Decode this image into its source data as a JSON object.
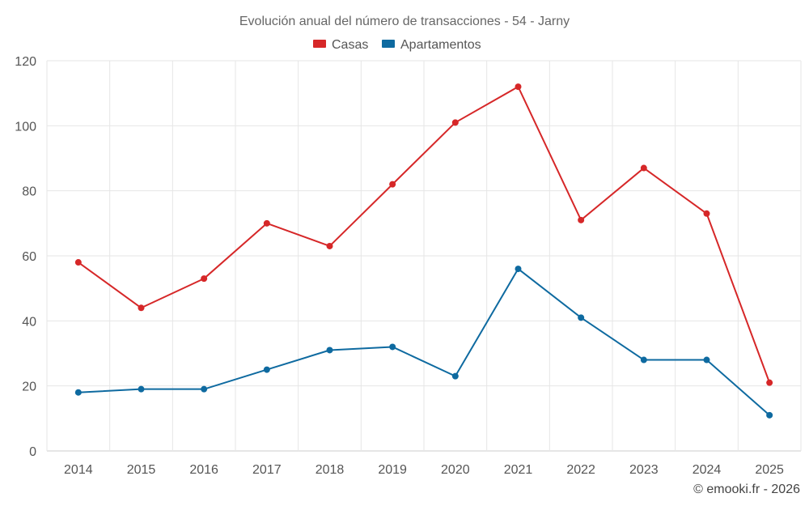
{
  "chart_data": {
    "type": "line",
    "title": "Evolución anual del número de transacciones - 54 - Jarny",
    "categories": [
      "2014",
      "2015",
      "2016",
      "2017",
      "2018",
      "2019",
      "2020",
      "2021",
      "2022",
      "2023",
      "2024",
      "2025"
    ],
    "series": [
      {
        "name": "Casas",
        "color": "#d62728",
        "values": [
          58,
          44,
          53,
          70,
          63,
          82,
          101,
          112,
          71,
          87,
          73,
          21
        ]
      },
      {
        "name": "Apartamentos",
        "color": "#0e6aa0",
        "values": [
          18,
          19,
          19,
          25,
          31,
          32,
          23,
          56,
          41,
          28,
          28,
          11
        ]
      }
    ],
    "ylim": [
      0,
      120
    ],
    "yticks": [
      0,
      20,
      40,
      60,
      80,
      100,
      120
    ],
    "xlabel": "",
    "ylabel": "",
    "grid": true,
    "legend_position": "top-center"
  },
  "credit": "© emooki.fr - 2026"
}
